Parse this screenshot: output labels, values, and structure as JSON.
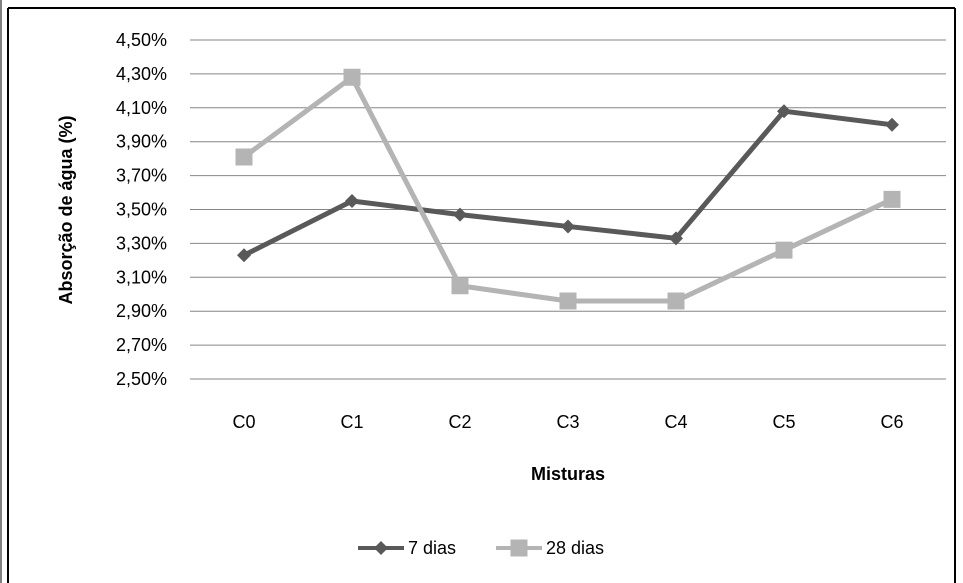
{
  "chart_data": {
    "type": "line",
    "title": "",
    "xlabel": "Misturas",
    "ylabel": "Absorção de água (%)",
    "categories": [
      "C0",
      "C1",
      "C2",
      "C3",
      "C4",
      "C5",
      "C6"
    ],
    "ylim": [
      2.5,
      4.5
    ],
    "ytick_step": 0.2,
    "ytick_labels": [
      "2,50%",
      "2,70%",
      "2,90%",
      "3,10%",
      "3,30%",
      "3,50%",
      "3,70%",
      "3,90%",
      "4,10%",
      "4,30%",
      "4,50%"
    ],
    "grid": true,
    "legend_position": "bottom",
    "series": [
      {
        "name": "7 dias",
        "values": [
          3.23,
          3.55,
          3.47,
          3.4,
          3.33,
          4.08,
          4.0
        ],
        "color": "#595959",
        "marker": "diamond"
      },
      {
        "name": "28 dias",
        "values": [
          3.81,
          4.28,
          3.05,
          2.96,
          2.96,
          3.26,
          3.56
        ],
        "color": "#b4b4b4",
        "marker": "square"
      }
    ]
  }
}
